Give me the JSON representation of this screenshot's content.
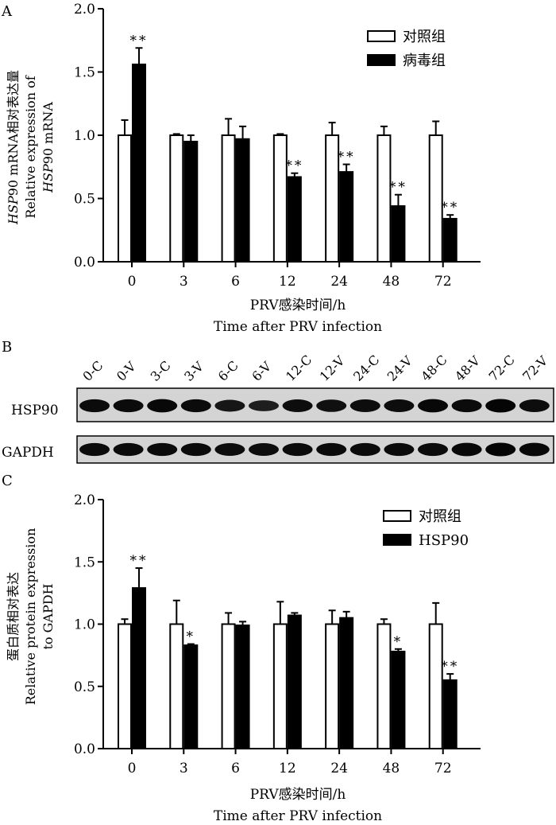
{
  "panels": {
    "a": {
      "letter": "A"
    },
    "b": {
      "letter": "B"
    },
    "c": {
      "letter": "C"
    }
  },
  "chart_data": [
    {
      "type": "bar",
      "panel": "A",
      "categories": [
        "0",
        "3",
        "6",
        "12",
        "24",
        "48",
        "72"
      ],
      "xlabel_cn": "PRV感染时间/h",
      "xlabel_en": "Time after PRV infection",
      "ylabel_cn_italic": "HSP",
      "ylabel_cn_rest": "90 mRNA相对表达量",
      "ylabel_en_1": "Relative expression of",
      "ylabel_en_2_italic": "HSP",
      "ylabel_en_2_rest": "90 mRNA",
      "ylim": [
        0,
        2.0
      ],
      "yticks": [
        "0.0",
        "0.5",
        "1.0",
        "1.5",
        "2.0"
      ],
      "yticks_values": [
        0,
        0.5,
        1.0,
        1.5,
        2.0
      ],
      "legend_position": "top-right",
      "series": [
        {
          "name": "对照组",
          "fill": "#ffffff",
          "values": [
            1.0,
            1.0,
            1.0,
            1.0,
            1.0,
            1.0,
            1.0
          ],
          "errors": [
            0.12,
            0.01,
            0.13,
            0.01,
            0.1,
            0.07,
            0.11
          ]
        },
        {
          "name": "病毒组",
          "fill": "#000000",
          "values": [
            1.56,
            0.95,
            0.97,
            0.67,
            0.71,
            0.44,
            0.34
          ],
          "errors": [
            0.13,
            0.05,
            0.1,
            0.03,
            0.06,
            0.09,
            0.03
          ]
        }
      ],
      "significance": [
        "**",
        "",
        "",
        "**",
        "**",
        "**",
        "**"
      ]
    },
    {
      "type": "bar",
      "panel": "C",
      "categories": [
        "0",
        "3",
        "6",
        "12",
        "24",
        "48",
        "72"
      ],
      "xlabel_cn": "PRV感染时间/h",
      "xlabel_en": "Time after PRV infection",
      "ylabel_cn": "蛋白质相对表达",
      "ylabel_en_1": "Relative protein expression",
      "ylabel_en_2": "to GAPDH",
      "ylim": [
        0,
        2.0
      ],
      "yticks": [
        "0.0",
        "0.5",
        "1.0",
        "1.5",
        "2.0"
      ],
      "yticks_values": [
        0,
        0.5,
        1.0,
        1.5,
        2.0
      ],
      "legend_position": "top-right",
      "series": [
        {
          "name": "对照组",
          "fill": "#ffffff",
          "values": [
            1.0,
            1.0,
            1.0,
            1.0,
            1.0,
            1.0,
            1.0
          ],
          "errors": [
            0.04,
            0.19,
            0.09,
            0.18,
            0.11,
            0.04,
            0.17
          ]
        },
        {
          "name": "HSP90",
          "fill": "#000000",
          "values": [
            1.29,
            0.83,
            0.99,
            1.07,
            1.05,
            0.78,
            0.55
          ],
          "errors": [
            0.16,
            0.01,
            0.03,
            0.02,
            0.05,
            0.02,
            0.05
          ]
        }
      ],
      "significance": [
        "**",
        "*",
        "",
        "",
        "",
        "*",
        "**"
      ]
    }
  ],
  "blot": {
    "lanes": [
      "0-C",
      "0-V",
      "3-C",
      "3-V",
      "6-C",
      "6-V",
      "12-C",
      "12-V",
      "24-C",
      "24-V",
      "48-C",
      "48-V",
      "72-C",
      "72-V"
    ],
    "rows": [
      {
        "label": "HSP90",
        "intensity": [
          0.9,
          0.9,
          0.95,
          0.9,
          0.7,
          0.55,
          0.85,
          0.8,
          0.85,
          0.85,
          0.95,
          0.9,
          1.0,
          0.85
        ]
      },
      {
        "label": "GAPDH",
        "intensity": [
          0.9,
          0.9,
          0.9,
          0.9,
          0.85,
          0.85,
          0.9,
          0.9,
          0.9,
          0.9,
          0.9,
          0.95,
          1.0,
          0.95
        ]
      }
    ]
  }
}
